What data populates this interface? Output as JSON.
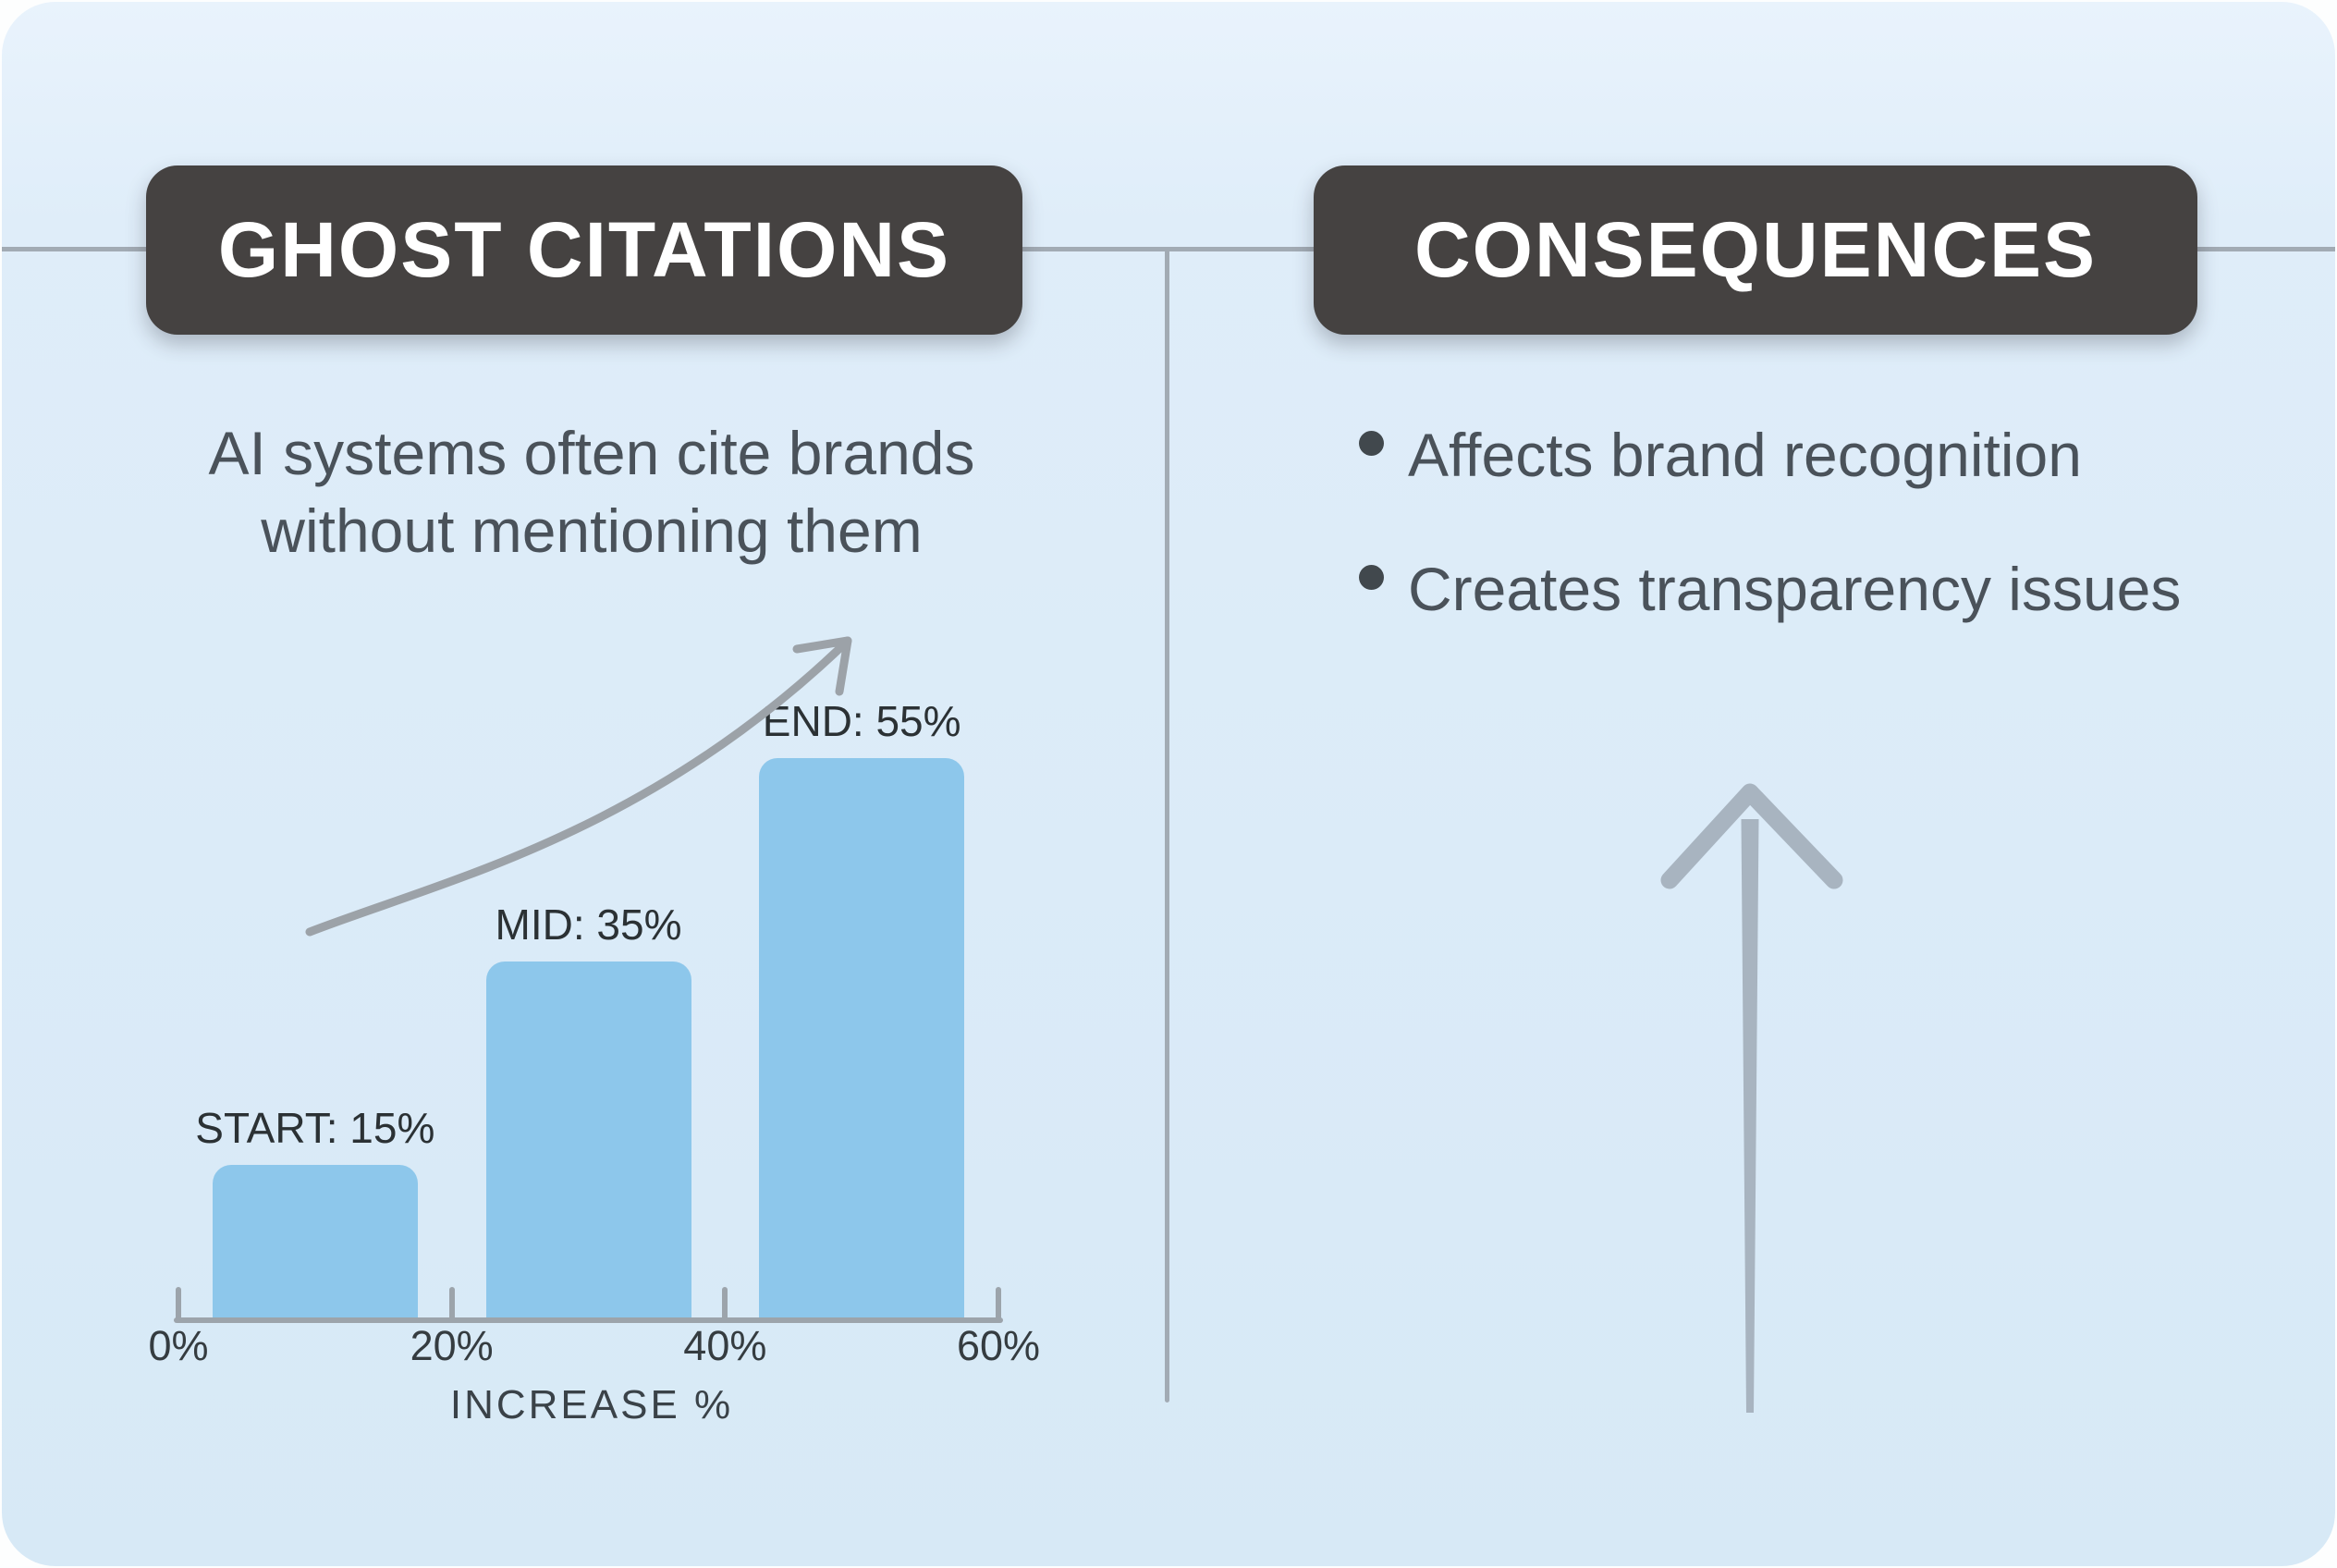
{
  "left_panel": {
    "header": "GHOST CITATIONS",
    "subtitle_line1": "AI systems often cite brands",
    "subtitle_line2": "without mentioning them"
  },
  "right_panel": {
    "header": "CONSEQUENCES",
    "bullets": [
      "Affects brand recognition",
      "Creates transparency issues"
    ]
  },
  "chart_data": {
    "type": "bar",
    "categories": [
      "START",
      "MID",
      "END"
    ],
    "values": [
      15,
      35,
      55
    ],
    "bar_labels": [
      "START: 15%",
      "MID: 35%",
      "END: 55%"
    ],
    "x_tick_labels": [
      "0%",
      "20%",
      "40%",
      "60%"
    ],
    "xlim": [
      0,
      60
    ],
    "xlabel": "INCREASE %",
    "grid": false,
    "legend": "none",
    "annotations": [
      "rising curved trend arrow above bars",
      "large upward arrow in right panel"
    ]
  },
  "colors": {
    "card_background": "#DCEBF8",
    "outer_background": "#FDFEFE",
    "header_background": "#454241",
    "header_text": "#FFFFFF",
    "body_text": "#4A525A",
    "chart_label_text": "#2B3134",
    "bar_fill": "#8DC7EB",
    "axis_gray": "#9CA4AB",
    "divider_gray": "#A2ABB4",
    "trend_arrow_gray": "#9CA2A8",
    "up_arrow_gray": "#A8B4C0"
  }
}
